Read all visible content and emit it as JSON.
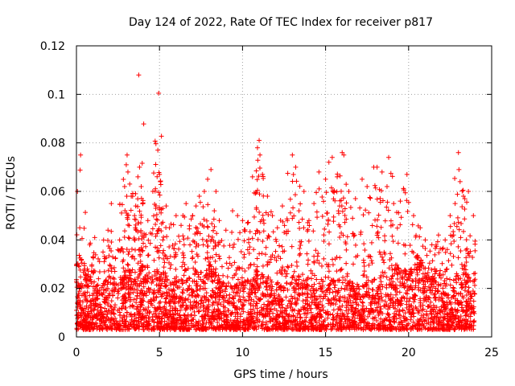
{
  "chart_data": {
    "type": "scatter",
    "title": "Day 124 of 2022, Rate Of TEC Index for receiver p817",
    "xlabel": "GPS time / hours",
    "ylabel": "ROTI / TECUs",
    "xlim": [
      0,
      25
    ],
    "ylim": [
      0,
      0.12
    ],
    "x_ticks": [
      0,
      5,
      10,
      15,
      20,
      25
    ],
    "x_tick_labels": [
      "0",
      "5",
      "10",
      "15",
      "20",
      "25"
    ],
    "y_ticks": [
      0,
      0.02,
      0.04,
      0.06,
      0.08,
      0.1,
      0.12
    ],
    "y_tick_labels": [
      "0",
      "0.02",
      "0.04",
      "0.06",
      "0.08",
      "0.1",
      "0.12"
    ],
    "grid": true,
    "marker": "plus",
    "color": "#ff0000",
    "series": [
      {
        "name": "",
        "x": [
          0.2,
          0.25,
          0.3,
          0.5,
          0.8,
          1.1,
          1.6,
          1.9,
          2.1,
          2.6,
          2.9,
          3.0,
          3.05,
          3.1,
          3.3,
          3.5,
          3.7,
          3.75,
          3.8,
          3.9,
          4.0,
          4.3,
          4.6,
          4.9,
          4.95,
          5.0,
          5.05,
          5.2,
          5.4,
          5.6,
          6.0,
          6.3,
          6.6,
          7.0,
          7.2,
          7.4,
          7.7,
          7.9,
          8.1,
          8.3,
          8.4,
          8.6,
          9.0,
          9.4,
          9.7,
          10.0,
          10.3,
          10.6,
          10.9,
          11.0,
          11.05,
          11.2,
          11.5,
          11.8,
          12.1,
          12.4,
          12.7,
          13.0,
          13.2,
          13.4,
          13.7,
          14.0,
          14.3,
          14.6,
          15.0,
          15.2,
          15.4,
          15.7,
          16.0,
          16.1,
          16.4,
          16.8,
          17.2,
          17.5,
          17.9,
          18.1,
          18.4,
          18.7,
          18.8,
          19.1,
          19.5,
          19.9,
          20.3,
          20.7,
          21.0,
          21.4,
          21.8,
          22.2,
          22.5,
          22.8,
          23.0,
          23.1,
          23.3,
          23.6,
          23.9
        ],
        "y": [
          0.045,
          0.075,
          0.032,
          0.028,
          0.038,
          0.041,
          0.035,
          0.044,
          0.055,
          0.04,
          0.062,
          0.071,
          0.075,
          0.068,
          0.058,
          0.05,
          0.066,
          0.108,
          0.07,
          0.062,
          0.055,
          0.048,
          0.06,
          0.077,
          0.1005,
          0.067,
          0.064,
          0.04,
          0.054,
          0.045,
          0.05,
          0.046,
          0.055,
          0.05,
          0.054,
          0.058,
          0.06,
          0.065,
          0.069,
          0.052,
          0.06,
          0.048,
          0.044,
          0.052,
          0.05,
          0.048,
          0.047,
          0.066,
          0.078,
          0.081,
          0.075,
          0.067,
          0.058,
          0.05,
          0.045,
          0.054,
          0.048,
          0.075,
          0.07,
          0.052,
          0.06,
          0.048,
          0.055,
          0.068,
          0.065,
          0.072,
          0.074,
          0.066,
          0.076,
          0.075,
          0.06,
          0.057,
          0.065,
          0.062,
          0.07,
          0.07,
          0.068,
          0.062,
          0.074,
          0.055,
          0.056,
          0.067,
          0.05,
          0.045,
          0.04,
          0.038,
          0.042,
          0.04,
          0.05,
          0.055,
          0.076,
          0.064,
          0.058,
          0.06,
          0.05
        ],
        "baseline": {
          "x": [
            0,
            0.5,
            1,
            1.5,
            2,
            2.5,
            3,
            3.5,
            4,
            4.5,
            5,
            5.5,
            6,
            6.5,
            7,
            7.5,
            8,
            8.5,
            9,
            9.5,
            10,
            10.5,
            11,
            11.5,
            12,
            12.5,
            13,
            13.5,
            14,
            14.5,
            15,
            15.5,
            16,
            16.5,
            17,
            17.5,
            18,
            18.5,
            19,
            19.5,
            20,
            20.5,
            21,
            21.5,
            22,
            22.5,
            23,
            23.5,
            24
          ],
          "y": [
            0.018,
            0.022,
            0.02,
            0.018,
            0.024,
            0.02,
            0.026,
            0.022,
            0.028,
            0.024,
            0.026,
            0.02,
            0.022,
            0.02,
            0.024,
            0.026,
            0.028,
            0.022,
            0.02,
            0.018,
            0.02,
            0.022,
            0.026,
            0.022,
            0.02,
            0.018,
            0.022,
            0.024,
            0.02,
            0.018,
            0.024,
            0.022,
            0.026,
            0.02,
            0.018,
            0.02,
            0.022,
            0.024,
            0.028,
            0.026,
            0.024,
            0.03,
            0.028,
            0.026,
            0.022,
            0.018,
            0.024,
            0.028,
            0.02
          ]
        }
      }
    ]
  }
}
